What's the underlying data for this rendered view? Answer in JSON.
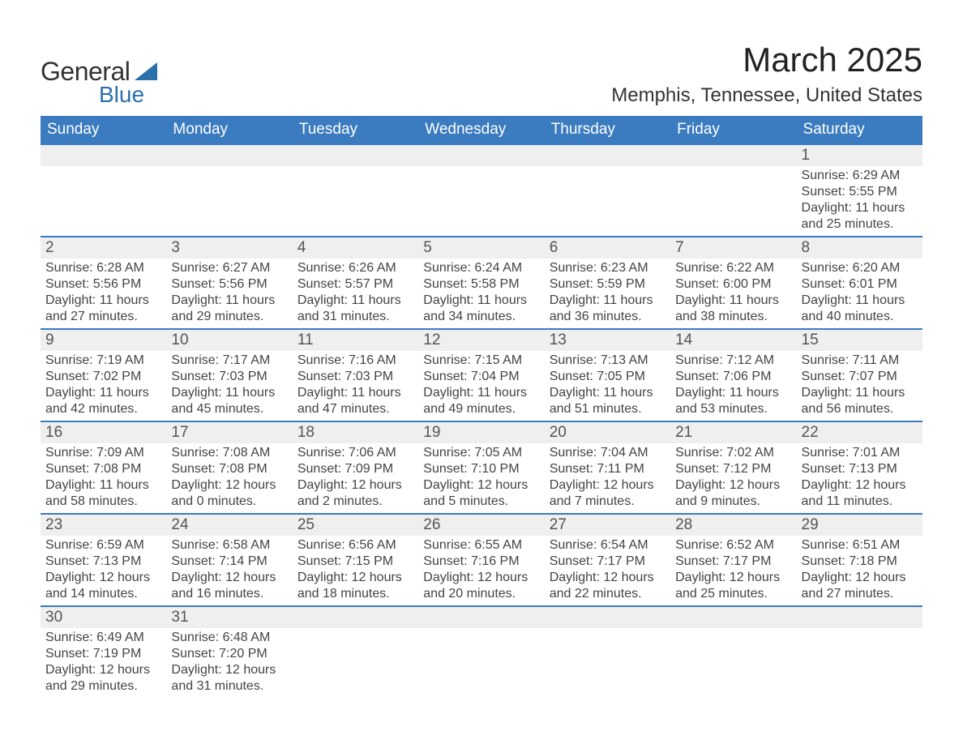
{
  "logo": {
    "text1": "General",
    "text2": "Blue"
  },
  "title": "March 2025",
  "location": "Memphis, Tennessee, United States",
  "dayHeaders": [
    "Sunday",
    "Monday",
    "Tuesday",
    "Wednesday",
    "Thursday",
    "Friday",
    "Saturday"
  ],
  "colors": {
    "headerBg": "#3b7bbf",
    "headerText": "#ffffff",
    "dayBg": "#efefef",
    "accent": "#2b6fab",
    "text": "#333333"
  },
  "weeks": [
    [
      null,
      null,
      null,
      null,
      null,
      null,
      {
        "n": "1",
        "sr": "Sunrise: 6:29 AM",
        "ss": "Sunset: 5:55 PM",
        "d1": "Daylight: 11 hours",
        "d2": "and 25 minutes."
      }
    ],
    [
      {
        "n": "2",
        "sr": "Sunrise: 6:28 AM",
        "ss": "Sunset: 5:56 PM",
        "d1": "Daylight: 11 hours",
        "d2": "and 27 minutes."
      },
      {
        "n": "3",
        "sr": "Sunrise: 6:27 AM",
        "ss": "Sunset: 5:56 PM",
        "d1": "Daylight: 11 hours",
        "d2": "and 29 minutes."
      },
      {
        "n": "4",
        "sr": "Sunrise: 6:26 AM",
        "ss": "Sunset: 5:57 PM",
        "d1": "Daylight: 11 hours",
        "d2": "and 31 minutes."
      },
      {
        "n": "5",
        "sr": "Sunrise: 6:24 AM",
        "ss": "Sunset: 5:58 PM",
        "d1": "Daylight: 11 hours",
        "d2": "and 34 minutes."
      },
      {
        "n": "6",
        "sr": "Sunrise: 6:23 AM",
        "ss": "Sunset: 5:59 PM",
        "d1": "Daylight: 11 hours",
        "d2": "and 36 minutes."
      },
      {
        "n": "7",
        "sr": "Sunrise: 6:22 AM",
        "ss": "Sunset: 6:00 PM",
        "d1": "Daylight: 11 hours",
        "d2": "and 38 minutes."
      },
      {
        "n": "8",
        "sr": "Sunrise: 6:20 AM",
        "ss": "Sunset: 6:01 PM",
        "d1": "Daylight: 11 hours",
        "d2": "and 40 minutes."
      }
    ],
    [
      {
        "n": "9",
        "sr": "Sunrise: 7:19 AM",
        "ss": "Sunset: 7:02 PM",
        "d1": "Daylight: 11 hours",
        "d2": "and 42 minutes."
      },
      {
        "n": "10",
        "sr": "Sunrise: 7:17 AM",
        "ss": "Sunset: 7:03 PM",
        "d1": "Daylight: 11 hours",
        "d2": "and 45 minutes."
      },
      {
        "n": "11",
        "sr": "Sunrise: 7:16 AM",
        "ss": "Sunset: 7:03 PM",
        "d1": "Daylight: 11 hours",
        "d2": "and 47 minutes."
      },
      {
        "n": "12",
        "sr": "Sunrise: 7:15 AM",
        "ss": "Sunset: 7:04 PM",
        "d1": "Daylight: 11 hours",
        "d2": "and 49 minutes."
      },
      {
        "n": "13",
        "sr": "Sunrise: 7:13 AM",
        "ss": "Sunset: 7:05 PM",
        "d1": "Daylight: 11 hours",
        "d2": "and 51 minutes."
      },
      {
        "n": "14",
        "sr": "Sunrise: 7:12 AM",
        "ss": "Sunset: 7:06 PM",
        "d1": "Daylight: 11 hours",
        "d2": "and 53 minutes."
      },
      {
        "n": "15",
        "sr": "Sunrise: 7:11 AM",
        "ss": "Sunset: 7:07 PM",
        "d1": "Daylight: 11 hours",
        "d2": "and 56 minutes."
      }
    ],
    [
      {
        "n": "16",
        "sr": "Sunrise: 7:09 AM",
        "ss": "Sunset: 7:08 PM",
        "d1": "Daylight: 11 hours",
        "d2": "and 58 minutes."
      },
      {
        "n": "17",
        "sr": "Sunrise: 7:08 AM",
        "ss": "Sunset: 7:08 PM",
        "d1": "Daylight: 12 hours",
        "d2": "and 0 minutes."
      },
      {
        "n": "18",
        "sr": "Sunrise: 7:06 AM",
        "ss": "Sunset: 7:09 PM",
        "d1": "Daylight: 12 hours",
        "d2": "and 2 minutes."
      },
      {
        "n": "19",
        "sr": "Sunrise: 7:05 AM",
        "ss": "Sunset: 7:10 PM",
        "d1": "Daylight: 12 hours",
        "d2": "and 5 minutes."
      },
      {
        "n": "20",
        "sr": "Sunrise: 7:04 AM",
        "ss": "Sunset: 7:11 PM",
        "d1": "Daylight: 12 hours",
        "d2": "and 7 minutes."
      },
      {
        "n": "21",
        "sr": "Sunrise: 7:02 AM",
        "ss": "Sunset: 7:12 PM",
        "d1": "Daylight: 12 hours",
        "d2": "and 9 minutes."
      },
      {
        "n": "22",
        "sr": "Sunrise: 7:01 AM",
        "ss": "Sunset: 7:13 PM",
        "d1": "Daylight: 12 hours",
        "d2": "and 11 minutes."
      }
    ],
    [
      {
        "n": "23",
        "sr": "Sunrise: 6:59 AM",
        "ss": "Sunset: 7:13 PM",
        "d1": "Daylight: 12 hours",
        "d2": "and 14 minutes."
      },
      {
        "n": "24",
        "sr": "Sunrise: 6:58 AM",
        "ss": "Sunset: 7:14 PM",
        "d1": "Daylight: 12 hours",
        "d2": "and 16 minutes."
      },
      {
        "n": "25",
        "sr": "Sunrise: 6:56 AM",
        "ss": "Sunset: 7:15 PM",
        "d1": "Daylight: 12 hours",
        "d2": "and 18 minutes."
      },
      {
        "n": "26",
        "sr": "Sunrise: 6:55 AM",
        "ss": "Sunset: 7:16 PM",
        "d1": "Daylight: 12 hours",
        "d2": "and 20 minutes."
      },
      {
        "n": "27",
        "sr": "Sunrise: 6:54 AM",
        "ss": "Sunset: 7:17 PM",
        "d1": "Daylight: 12 hours",
        "d2": "and 22 minutes."
      },
      {
        "n": "28",
        "sr": "Sunrise: 6:52 AM",
        "ss": "Sunset: 7:17 PM",
        "d1": "Daylight: 12 hours",
        "d2": "and 25 minutes."
      },
      {
        "n": "29",
        "sr": "Sunrise: 6:51 AM",
        "ss": "Sunset: 7:18 PM",
        "d1": "Daylight: 12 hours",
        "d2": "and 27 minutes."
      }
    ],
    [
      {
        "n": "30",
        "sr": "Sunrise: 6:49 AM",
        "ss": "Sunset: 7:19 PM",
        "d1": "Daylight: 12 hours",
        "d2": "and 29 minutes."
      },
      {
        "n": "31",
        "sr": "Sunrise: 6:48 AM",
        "ss": "Sunset: 7:20 PM",
        "d1": "Daylight: 12 hours",
        "d2": "and 31 minutes."
      },
      null,
      null,
      null,
      null,
      null
    ]
  ]
}
